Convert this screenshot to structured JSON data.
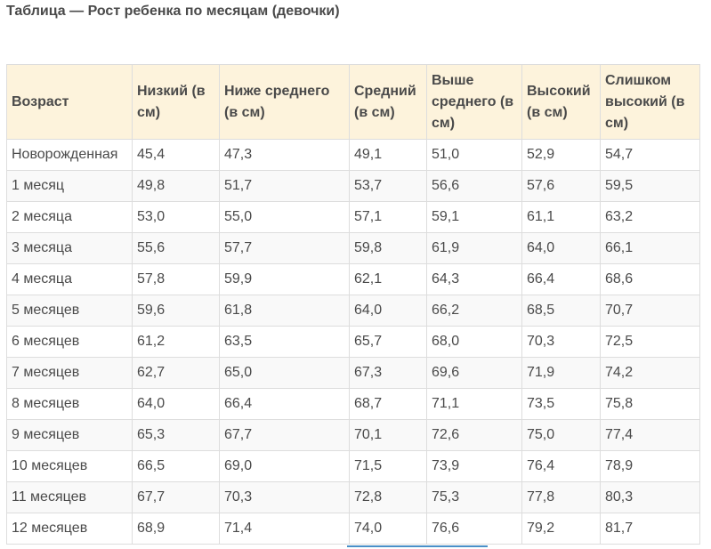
{
  "title": "Таблица — Рост ребенка по месяцам (девочки)",
  "table": {
    "headers": [
      "Возраст",
      "Низкий (в см)",
      "Ниже среднего (в см)",
      "Средний (в см)",
      "Выше среднего (в см)",
      "Высокий (в см)",
      "Слишком высокий (в см)"
    ],
    "rows": [
      [
        "Новорожденная",
        "45,4",
        "47,3",
        "49,1",
        "51,0",
        "52,9",
        "54,7"
      ],
      [
        "1 месяц",
        "49,8",
        "51,7",
        "53,7",
        "56,6",
        "57,6",
        "59,5"
      ],
      [
        "2 месяца",
        "53,0",
        "55,0",
        "57,1",
        "59,1",
        "61,1",
        "63,2"
      ],
      [
        "3 месяца",
        "55,6",
        "57,7",
        "59,8",
        "61,9",
        "64,0",
        "66,1"
      ],
      [
        "4 месяца",
        "57,8",
        "59,9",
        "62,1",
        "64,3",
        "66,4",
        "68,6"
      ],
      [
        "5 месяцев",
        "59,6",
        "61,8",
        "64,0",
        "66,2",
        "68,5",
        "70,7"
      ],
      [
        "6 месяцев",
        "61,2",
        "63,5",
        "65,7",
        "68,0",
        "70,3",
        "72,5"
      ],
      [
        "7 месяцев",
        "62,7",
        "65,0",
        "67,3",
        "69,6",
        "71,9",
        "74,2"
      ],
      [
        "8 месяцев",
        "64,0",
        "66,4",
        "68,7",
        "71,1",
        "73,5",
        "75,8"
      ],
      [
        "9 месяцев",
        "65,3",
        "67,7",
        "70,1",
        "72,6",
        "75,0",
        "77,4"
      ],
      [
        "10 месяцев",
        "66,5",
        "69,0",
        "71,5",
        "73,9",
        "76,4",
        "78,9"
      ],
      [
        "11 месяцев",
        "67,7",
        "70,3",
        "72,8",
        "75,3",
        "77,8",
        "80,3"
      ],
      [
        "12 месяцев",
        "68,9",
        "71,4",
        "74,0",
        "76,6",
        "79,2",
        "81,7"
      ]
    ]
  },
  "colors": {
    "header_background": "#fdf3dc",
    "text": "#4a4a4a",
    "border": "#dddddd",
    "stripe": "#f9f9f9",
    "scroll_indicator": "#4a90c8"
  }
}
